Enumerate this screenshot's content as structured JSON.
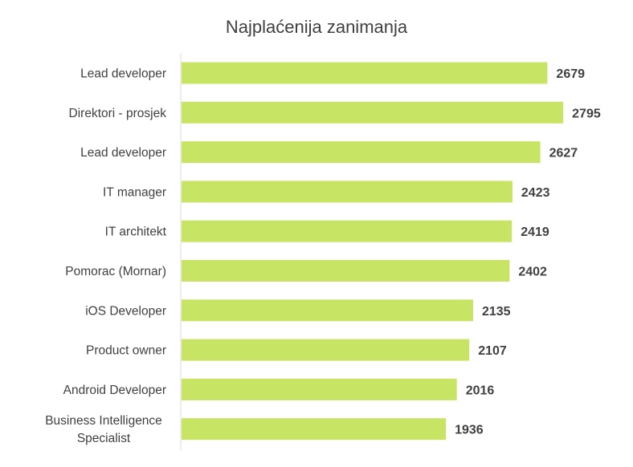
{
  "chart_data": {
    "type": "bar",
    "orientation": "horizontal",
    "title": "Najplaćenija zanimanja",
    "categories": [
      [
        "Lead developer"
      ],
      [
        "Direktori - prosjek"
      ],
      [
        "Lead developer"
      ],
      [
        "IT manager"
      ],
      [
        "IT architekt"
      ],
      [
        "Pomorac (Mornar)"
      ],
      [
        "iOS Developer"
      ],
      [
        "Product owner"
      ],
      [
        "Android Developer"
      ],
      [
        "Business Intelligence",
        "Specialist"
      ]
    ],
    "values": [
      2679,
      2795,
      2627,
      2423,
      2419,
      2402,
      2135,
      2107,
      2016,
      1936
    ],
    "data_labels": [
      "2679",
      "2795",
      "2627",
      "2423",
      "2419",
      "2402",
      "2135",
      "2107",
      "2016",
      "1936"
    ],
    "xlim": [
      0,
      3000
    ],
    "grid": false,
    "legend": "none",
    "colors": {
      "bar": "#c8e465",
      "axis": "#d9d9d9",
      "text": "#404040"
    }
  }
}
